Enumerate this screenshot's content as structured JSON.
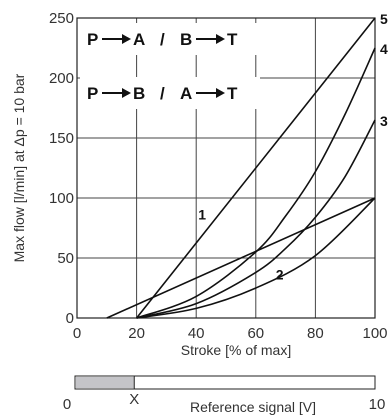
{
  "chart_data": {
    "type": "line",
    "xlabel": "Stroke [% of max]",
    "ylabel": "Max flow  [l/min] at Δp = 10 bar",
    "xlim": [
      0,
      100
    ],
    "ylim": [
      0,
      250
    ],
    "x_ticks": [
      "0",
      "20",
      "40",
      "60",
      "80",
      "100"
    ],
    "y_ticks": [
      "0",
      "50",
      "100",
      "150",
      "200",
      "250"
    ],
    "grid": true,
    "legend": [
      {
        "from": "P",
        "to": "A",
        "slash": "/",
        "from2": "B",
        "to2": "T"
      },
      {
        "from": "P",
        "to": "B",
        "slash": "/",
        "from2": "A",
        "to2": "T"
      }
    ],
    "series": [
      {
        "name": "1",
        "x": [
          10,
          100
        ],
        "y": [
          0,
          100
        ]
      },
      {
        "name": "2",
        "x": [
          20,
          40,
          60,
          80,
          100
        ],
        "y": [
          0,
          8,
          25,
          52,
          100
        ]
      },
      {
        "name": "3",
        "x": [
          20,
          40,
          60,
          70,
          80,
          90,
          100
        ],
        "y": [
          0,
          12,
          38,
          58,
          84,
          118,
          165
        ]
      },
      {
        "name": "4",
        "x": [
          20,
          40,
          60,
          70,
          80,
          90,
          100
        ],
        "y": [
          0,
          18,
          55,
          85,
          122,
          170,
          225
        ]
      },
      {
        "name": "5",
        "x": [
          20,
          100
        ],
        "y": [
          0,
          250
        ]
      }
    ],
    "curve_labels": [
      {
        "text": "1",
        "x": 42,
        "y": 82
      },
      {
        "text": "2",
        "x": 68,
        "y": 32
      }
    ],
    "reference_signal": {
      "label": "Reference signal [V]",
      "min_label": "0",
      "max_label": "10",
      "threshold_label": "X",
      "threshold_fraction": 0.25
    }
  }
}
